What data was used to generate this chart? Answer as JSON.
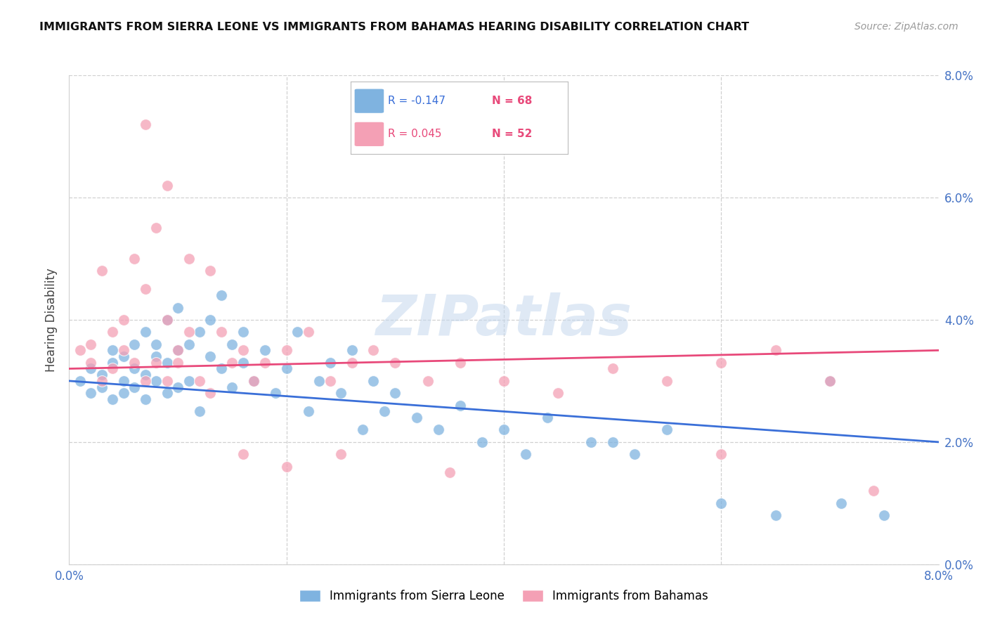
{
  "title": "IMMIGRANTS FROM SIERRA LEONE VS IMMIGRANTS FROM BAHAMAS HEARING DISABILITY CORRELATION CHART",
  "source": "Source: ZipAtlas.com",
  "ylabel": "Hearing Disability",
  "right_yticklabels": [
    "0.0%",
    "2.0%",
    "4.0%",
    "6.0%",
    "8.0%"
  ],
  "xlim": [
    0.0,
    0.08
  ],
  "ylim": [
    0.0,
    0.08
  ],
  "sierra_leone_color": "#7fb3e0",
  "bahamas_color": "#f4a0b5",
  "sierra_leone_line_color": "#3a6fd8",
  "bahamas_line_color": "#e8497a",
  "watermark": "ZIPatlas",
  "legend_r1": "R = -0.147",
  "legend_n1": "N = 68",
  "legend_r2": "R = 0.045",
  "legend_n2": "N = 52",
  "sierra_leone_label": "Immigrants from Sierra Leone",
  "bahamas_label": "Immigrants from Bahamas",
  "sierra_leone_x": [
    0.001,
    0.002,
    0.002,
    0.003,
    0.003,
    0.004,
    0.004,
    0.004,
    0.005,
    0.005,
    0.005,
    0.006,
    0.006,
    0.006,
    0.007,
    0.007,
    0.007,
    0.008,
    0.008,
    0.008,
    0.009,
    0.009,
    0.009,
    0.01,
    0.01,
    0.01,
    0.011,
    0.011,
    0.012,
    0.012,
    0.013,
    0.013,
    0.014,
    0.014,
    0.015,
    0.015,
    0.016,
    0.016,
    0.017,
    0.018,
    0.019,
    0.02,
    0.021,
    0.022,
    0.023,
    0.024,
    0.025,
    0.026,
    0.027,
    0.028,
    0.029,
    0.03,
    0.032,
    0.034,
    0.036,
    0.038,
    0.04,
    0.042,
    0.044,
    0.048,
    0.05,
    0.052,
    0.055,
    0.06,
    0.065,
    0.07,
    0.071,
    0.075
  ],
  "sierra_leone_y": [
    0.03,
    0.032,
    0.028,
    0.031,
    0.029,
    0.033,
    0.027,
    0.035,
    0.03,
    0.034,
    0.028,
    0.032,
    0.036,
    0.029,
    0.031,
    0.038,
    0.027,
    0.034,
    0.03,
    0.036,
    0.033,
    0.028,
    0.04,
    0.035,
    0.029,
    0.042,
    0.036,
    0.03,
    0.038,
    0.025,
    0.034,
    0.04,
    0.032,
    0.044,
    0.036,
    0.029,
    0.038,
    0.033,
    0.03,
    0.035,
    0.028,
    0.032,
    0.038,
    0.025,
    0.03,
    0.033,
    0.028,
    0.035,
    0.022,
    0.03,
    0.025,
    0.028,
    0.024,
    0.022,
    0.026,
    0.02,
    0.022,
    0.018,
    0.024,
    0.02,
    0.02,
    0.018,
    0.022,
    0.01,
    0.008,
    0.03,
    0.01,
    0.008
  ],
  "bahamas_x": [
    0.001,
    0.002,
    0.002,
    0.003,
    0.003,
    0.004,
    0.004,
    0.005,
    0.005,
    0.006,
    0.006,
    0.007,
    0.007,
    0.008,
    0.008,
    0.009,
    0.009,
    0.01,
    0.01,
    0.011,
    0.012,
    0.013,
    0.014,
    0.015,
    0.016,
    0.017,
    0.018,
    0.02,
    0.022,
    0.024,
    0.026,
    0.028,
    0.03,
    0.033,
    0.036,
    0.04,
    0.045,
    0.05,
    0.055,
    0.06,
    0.065,
    0.07,
    0.074,
    0.007,
    0.009,
    0.011,
    0.013,
    0.016,
    0.02,
    0.025,
    0.035,
    0.06
  ],
  "bahamas_y": [
    0.035,
    0.033,
    0.036,
    0.03,
    0.048,
    0.038,
    0.032,
    0.035,
    0.04,
    0.033,
    0.05,
    0.03,
    0.045,
    0.033,
    0.055,
    0.03,
    0.04,
    0.035,
    0.033,
    0.038,
    0.03,
    0.028,
    0.038,
    0.033,
    0.035,
    0.03,
    0.033,
    0.035,
    0.038,
    0.03,
    0.033,
    0.035,
    0.033,
    0.03,
    0.033,
    0.03,
    0.028,
    0.032,
    0.03,
    0.033,
    0.035,
    0.03,
    0.012,
    0.072,
    0.062,
    0.05,
    0.048,
    0.018,
    0.016,
    0.018,
    0.015,
    0.018
  ]
}
